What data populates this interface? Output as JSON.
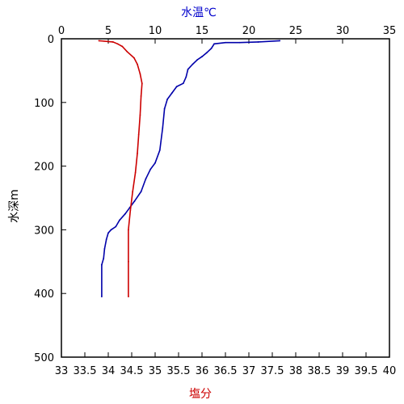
{
  "chart_data": {
    "type": "line",
    "axes": {
      "temperature": {
        "label": "水温℃",
        "label_color": "#0000cc",
        "range": [
          0,
          35
        ],
        "ticks": [
          0,
          5,
          10,
          15,
          20,
          25,
          30,
          35
        ],
        "tick_labels": [
          "0",
          "5",
          "10",
          "15",
          "20",
          "25",
          "30",
          "35"
        ],
        "position": "top"
      },
      "salinity": {
        "label": "塩分",
        "label_color": "#cc0000",
        "range": [
          33,
          40
        ],
        "ticks": [
          33,
          33.5,
          34,
          34.5,
          35,
          35.5,
          36,
          36.5,
          37,
          37.5,
          38,
          38.5,
          39,
          39.5,
          40
        ],
        "tick_labels": [
          "33",
          "33.5",
          "34",
          "34.5",
          "35",
          "35.5",
          "36",
          "36.5",
          "37",
          "37.5",
          "38",
          "38.5",
          "39",
          "39.5",
          "40"
        ],
        "position": "bottom"
      },
      "depth": {
        "label": "水深m",
        "label_color": "#000000",
        "range": [
          0,
          500
        ],
        "inverted": true,
        "ticks": [
          0,
          100,
          200,
          300,
          400,
          500
        ],
        "tick_labels": [
          "0",
          "100",
          "200",
          "300",
          "400",
          "500"
        ],
        "position": "left"
      }
    },
    "series": [
      {
        "axis": "temperature",
        "color": "#0000aa",
        "points": [
          [
            23.3,
            3
          ],
          [
            21.0,
            5
          ],
          [
            19.0,
            6
          ],
          [
            17.5,
            6
          ],
          [
            16.3,
            8
          ],
          [
            16.0,
            15
          ],
          [
            15.5,
            22
          ],
          [
            15.0,
            28
          ],
          [
            14.5,
            33
          ],
          [
            14.0,
            40
          ],
          [
            13.5,
            48
          ],
          [
            13.3,
            60
          ],
          [
            13.0,
            70
          ],
          [
            12.3,
            75
          ],
          [
            11.8,
            85
          ],
          [
            11.3,
            95
          ],
          [
            11.0,
            110
          ],
          [
            10.8,
            140
          ],
          [
            10.5,
            175
          ],
          [
            10.0,
            195
          ],
          [
            9.5,
            205
          ],
          [
            9.0,
            220
          ],
          [
            8.5,
            240
          ],
          [
            7.8,
            255
          ],
          [
            7.3,
            265
          ],
          [
            6.8,
            275
          ],
          [
            6.2,
            285
          ],
          [
            5.8,
            295
          ],
          [
            5.3,
            300
          ],
          [
            5.0,
            305
          ],
          [
            4.8,
            315
          ],
          [
            4.6,
            330
          ],
          [
            4.5,
            345
          ],
          [
            4.3,
            355
          ],
          [
            4.3,
            405
          ]
        ]
      },
      {
        "axis": "salinity",
        "color": "#cc0000",
        "points": [
          [
            33.8,
            3
          ],
          [
            34.1,
            5
          ],
          [
            34.2,
            8
          ],
          [
            34.3,
            12
          ],
          [
            34.4,
            20
          ],
          [
            34.55,
            30
          ],
          [
            34.62,
            40
          ],
          [
            34.68,
            55
          ],
          [
            34.72,
            70
          ],
          [
            34.7,
            90
          ],
          [
            34.68,
            120
          ],
          [
            34.65,
            150
          ],
          [
            34.62,
            180
          ],
          [
            34.58,
            210
          ],
          [
            34.52,
            240
          ],
          [
            34.47,
            270
          ],
          [
            34.43,
            300
          ],
          [
            34.43,
            350
          ],
          [
            34.43,
            405
          ]
        ]
      }
    ],
    "grid": false,
    "legend": "none"
  }
}
